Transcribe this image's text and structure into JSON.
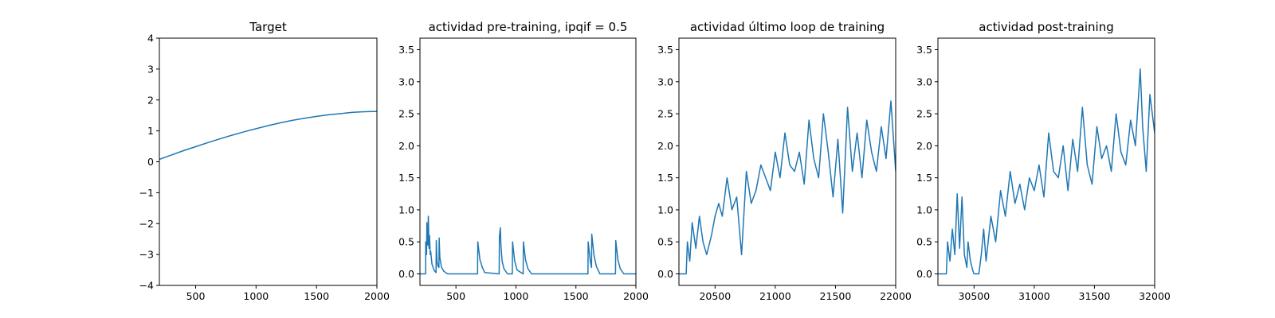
{
  "chart_data": [
    {
      "type": "line",
      "title": "Target",
      "xlim": [
        200,
        2000
      ],
      "ylim": [
        -4,
        4
      ],
      "xticks": [
        500,
        1000,
        1500,
        2000
      ],
      "yticks": [
        -4,
        -3,
        -2,
        -1,
        0,
        1,
        2,
        3,
        4
      ],
      "series": [
        {
          "color": "#1f77b4",
          "x": [
            200,
            300,
            400,
            500,
            600,
            700,
            800,
            900,
            1000,
            1100,
            1200,
            1300,
            1400,
            1500,
            1600,
            1700,
            1800,
            1900,
            2000
          ],
          "y": [
            0.08,
            0.22,
            0.36,
            0.49,
            0.62,
            0.74,
            0.86,
            0.97,
            1.07,
            1.17,
            1.26,
            1.34,
            1.41,
            1.47,
            1.52,
            1.56,
            1.6,
            1.62,
            1.63
          ]
        }
      ]
    },
    {
      "type": "line",
      "title": "actividad pre-training, ipqif = 0.5",
      "xlim": [
        200,
        2000
      ],
      "ylim": [
        -0.18,
        3.68
      ],
      "xticks": [
        500,
        1000,
        1500,
        2000
      ],
      "yticks": [
        0.0,
        0.5,
        1.0,
        1.5,
        2.0,
        2.5,
        3.0,
        3.5
      ],
      "series": [
        {
          "color": "#1f77b4",
          "x": [
            200,
            248,
            248,
            255,
            258,
            265,
            270,
            276,
            280,
            286,
            290,
            300,
            320,
            334,
            336,
            342,
            350,
            358,
            360,
            366,
            380,
            400,
            430,
            680,
            682,
            700,
            720,
            740,
            860,
            862,
            870,
            875,
            885,
            900,
            930,
            970,
            972,
            990,
            1010,
            1060,
            1062,
            1080,
            1100,
            1130,
            1600,
            1602,
            1620,
            1630,
            1632,
            1650,
            1670,
            1700,
            1830,
            1832,
            1850,
            1870,
            1900,
            2000
          ],
          "y": [
            0.0,
            0.0,
            0.5,
            0.3,
            0.8,
            0.45,
            0.9,
            0.4,
            0.6,
            0.3,
            0.35,
            0.15,
            0.05,
            0.02,
            0.52,
            0.2,
            0.12,
            0.1,
            0.56,
            0.25,
            0.1,
            0.04,
            0.0,
            0.0,
            0.5,
            0.22,
            0.1,
            0.02,
            0.0,
            0.58,
            0.72,
            0.45,
            0.2,
            0.08,
            0.0,
            0.0,
            0.5,
            0.2,
            0.06,
            0.0,
            0.5,
            0.22,
            0.08,
            0.0,
            0.0,
            0.5,
            0.2,
            0.1,
            0.62,
            0.3,
            0.12,
            0.0,
            0.0,
            0.52,
            0.22,
            0.08,
            0.0,
            0.0
          ]
        }
      ]
    },
    {
      "type": "line",
      "title": "actividad último loop de training",
      "xlim": [
        20200,
        22000
      ],
      "ylim": [
        -0.18,
        3.68
      ],
      "xticks": [
        20500,
        21000,
        21500,
        22000
      ],
      "yticks": [
        0.0,
        0.5,
        1.0,
        1.5,
        2.0,
        2.5,
        3.0,
        3.5
      ],
      "series": [
        {
          "color": "#1f77b4",
          "x": [
            20200,
            20260,
            20270,
            20290,
            20310,
            20340,
            20370,
            20400,
            20430,
            20470,
            20500,
            20530,
            20560,
            20600,
            20640,
            20680,
            20720,
            20760,
            20800,
            20840,
            20880,
            20920,
            20960,
            21000,
            21040,
            21080,
            21120,
            21160,
            21200,
            21240,
            21280,
            21320,
            21360,
            21400,
            21440,
            21480,
            21520,
            21560,
            21600,
            21640,
            21680,
            21720,
            21760,
            21800,
            21840,
            21880,
            21920,
            21960,
            22000
          ],
          "y": [
            0.0,
            0.0,
            0.5,
            0.2,
            0.8,
            0.4,
            0.9,
            0.5,
            0.3,
            0.6,
            0.9,
            1.1,
            0.9,
            1.5,
            1.0,
            1.2,
            0.3,
            1.6,
            1.1,
            1.3,
            1.7,
            1.5,
            1.3,
            1.9,
            1.5,
            2.2,
            1.7,
            1.6,
            1.9,
            1.4,
            2.4,
            1.8,
            1.5,
            2.5,
            1.9,
            1.2,
            2.1,
            0.95,
            2.6,
            1.6,
            2.2,
            1.5,
            2.4,
            1.9,
            1.6,
            2.3,
            1.8,
            2.7,
            1.6
          ]
        }
      ]
    },
    {
      "type": "line",
      "title": "actividad post-training",
      "xlim": [
        30200,
        32000
      ],
      "ylim": [
        -0.18,
        3.68
      ],
      "xticks": [
        30500,
        31000,
        31500,
        32000
      ],
      "yticks": [
        0.0,
        0.5,
        1.0,
        1.5,
        2.0,
        2.5,
        3.0,
        3.5
      ],
      "series": [
        {
          "color": "#1f77b4",
          "x": [
            30200,
            30270,
            30280,
            30300,
            30320,
            30340,
            30360,
            30380,
            30400,
            30420,
            30440,
            30450,
            30470,
            30490,
            30500,
            30520,
            30540,
            30560,
            30580,
            30600,
            30640,
            30680,
            30720,
            30760,
            30800,
            30840,
            30880,
            30920,
            30960,
            31000,
            31040,
            31080,
            31120,
            31160,
            31200,
            31240,
            31280,
            31320,
            31360,
            31400,
            31440,
            31480,
            31520,
            31560,
            31600,
            31640,
            31680,
            31720,
            31760,
            31800,
            31840,
            31880,
            31900,
            31930,
            31960,
            32000
          ],
          "y": [
            0.0,
            0.0,
            0.5,
            0.2,
            0.7,
            0.3,
            1.25,
            0.4,
            1.2,
            0.3,
            0.1,
            0.5,
            0.2,
            0.05,
            0.0,
            0.0,
            0.0,
            0.3,
            0.7,
            0.2,
            0.9,
            0.5,
            1.3,
            0.9,
            1.6,
            1.1,
            1.4,
            1.0,
            1.5,
            1.3,
            1.7,
            1.2,
            2.2,
            1.6,
            1.5,
            2.0,
            1.3,
            2.1,
            1.6,
            2.6,
            1.7,
            1.4,
            2.3,
            1.8,
            2.0,
            1.6,
            2.5,
            1.9,
            1.7,
            2.4,
            2.0,
            3.2,
            2.3,
            1.6,
            2.8,
            2.2
          ]
        }
      ]
    }
  ]
}
